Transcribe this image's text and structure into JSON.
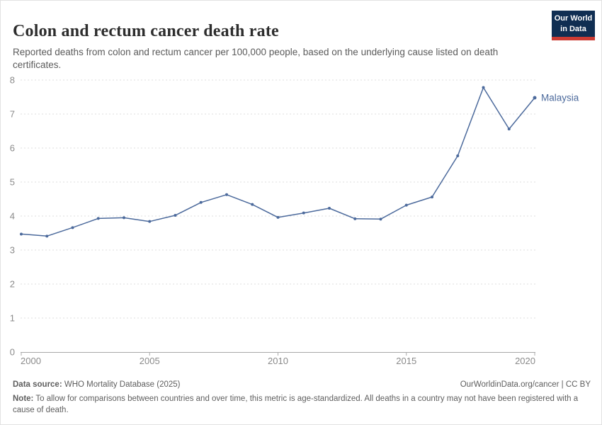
{
  "header": {
    "title": "Colon and rectum cancer death rate",
    "subtitle": "Reported deaths from colon and rectum cancer per 100,000 people, based on the underlying cause listed on death certificates.",
    "logo": {
      "line1": "Our World",
      "line2": "in Data"
    }
  },
  "chart_data": {
    "type": "line",
    "title": "Colon and rectum cancer death rate",
    "x": [
      2000,
      2001,
      2002,
      2003,
      2004,
      2005,
      2006,
      2007,
      2008,
      2009,
      2010,
      2011,
      2012,
      2013,
      2014,
      2015,
      2016,
      2017,
      2018,
      2019,
      2020
    ],
    "series": [
      {
        "name": "Malaysia",
        "values": [
          3.47,
          3.41,
          3.66,
          3.93,
          3.95,
          3.84,
          4.02,
          4.4,
          4.63,
          4.34,
          3.96,
          4.09,
          4.23,
          3.92,
          3.91,
          4.32,
          4.56,
          5.77,
          7.78,
          6.56,
          7.48
        ]
      }
    ],
    "xlabel": "",
    "ylabel": "",
    "x_ticks": [
      2000,
      2005,
      2010,
      2015,
      2020
    ],
    "y_ticks": [
      0,
      1,
      2,
      3,
      4,
      5,
      6,
      7,
      8
    ],
    "xlim": [
      2000,
      2020
    ],
    "ylim": [
      0,
      8
    ],
    "grid": "horizontal-dashed",
    "legend_position": "end-of-line-label",
    "end_label": "Malaysia"
  },
  "colors": {
    "series_blue": "#4c6a9c",
    "grid": "#dcdcdc",
    "axis": "#a8a8a8",
    "tick_label": "#8a8a8a",
    "logo_bg": "#102e52",
    "logo_accent": "#cc3b33"
  },
  "footer": {
    "data_source_label": "Data source:",
    "data_source_value": " WHO Mortality Database (2025)",
    "link_text": "OurWorldinData.org/cancer | CC BY",
    "note_label": "Note:",
    "note_text": " To allow for comparisons between countries and over time, this metric is age-standardized. All deaths in a country may not have been registered with a cause of death."
  }
}
